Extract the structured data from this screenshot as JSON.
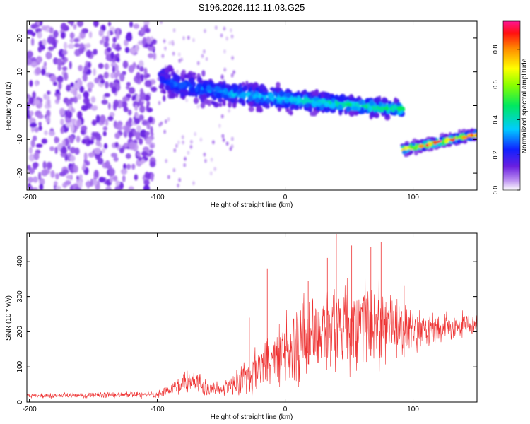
{
  "title": "S196.2026.112.11.03.G25",
  "colors": {
    "line": "#ee3333",
    "axis": "#000000",
    "background": "#ffffff"
  },
  "chart_data": [
    {
      "type": "heatmap",
      "name": "spectrogram",
      "xlabel": "Height of straight line (km)",
      "ylabel": "Frequency (Hz)",
      "xlim": [
        -202,
        150
      ],
      "ylim": [
        -25,
        25
      ],
      "xticks": [
        "-200",
        "-100",
        "0",
        "100"
      ],
      "yticks": [
        "-20",
        "-10",
        "0",
        "10",
        "20"
      ],
      "xtick_values": [
        -200,
        -100,
        0,
        100
      ],
      "ytick_values": [
        -20,
        -10,
        0,
        10,
        20
      ],
      "colorbar": {
        "label": "Normalized spectral amplitude",
        "range": [
          0,
          0.96
        ],
        "ticks": [
          "0.0",
          "0.2",
          "0.4",
          "0.6",
          "0.8"
        ],
        "tick_values": [
          0,
          0.2,
          0.4,
          0.6,
          0.8
        ]
      },
      "features": [
        {
          "desc": "diffuse noise",
          "x": [
            -202,
            -102
          ],
          "freq": [
            -25,
            25
          ],
          "amplitude": 0.12
        },
        {
          "desc": "main trace",
          "x": [
            -98,
            92
          ],
          "freq_start": 8,
          "freq_end": -1,
          "amplitude_peak": 0.5
        },
        {
          "desc": "offset trace",
          "x": [
            92,
            150
          ],
          "freq_start": -13,
          "freq_end": -8.5,
          "amplitude_peak": 0.95
        }
      ]
    },
    {
      "type": "line",
      "name": "snr",
      "xlabel": "Height of straight line (km)",
      "ylabel": "SNR (10 * v/v)",
      "xlim": [
        -202,
        150
      ],
      "ylim": [
        0,
        480
      ],
      "xticks": [
        "-200",
        "-100",
        "0",
        "100"
      ],
      "yticks": [
        "0",
        "100",
        "200",
        "300",
        "400"
      ],
      "xtick_values": [
        -200,
        -100,
        0,
        100
      ],
      "ytick_values": [
        0,
        100,
        200,
        300,
        400
      ],
      "envelope": {
        "x": [
          -202,
          -150,
          -100,
          -90,
          -75,
          -60,
          -45,
          -30,
          -20,
          -10,
          0,
          10,
          20,
          30,
          40,
          50,
          60,
          70,
          80,
          90,
          100,
          110,
          120,
          130,
          140,
          150
        ],
        "mean": [
          18,
          20,
          20,
          35,
          60,
          40,
          40,
          75,
          85,
          110,
          140,
          160,
          185,
          210,
          215,
          220,
          225,
          215,
          225,
          215,
          210,
          205,
          210,
          215,
          220,
          215
        ],
        "spread": [
          8,
          10,
          12,
          20,
          45,
          25,
          25,
          60,
          90,
          120,
          140,
          150,
          150,
          160,
          170,
          170,
          160,
          140,
          140,
          110,
          80,
          60,
          50,
          45,
          45,
          40
        ]
      },
      "peaks": [
        {
          "x": -58,
          "y": 115
        },
        {
          "x": -28,
          "y": 240
        },
        {
          "x": -14,
          "y": 380
        },
        {
          "x": 18,
          "y": 345
        },
        {
          "x": 33,
          "y": 410
        },
        {
          "x": 40,
          "y": 478
        },
        {
          "x": 52,
          "y": 445
        },
        {
          "x": 67,
          "y": 440
        },
        {
          "x": 75,
          "y": 455
        },
        {
          "x": 93,
          "y": 330
        }
      ]
    }
  ]
}
